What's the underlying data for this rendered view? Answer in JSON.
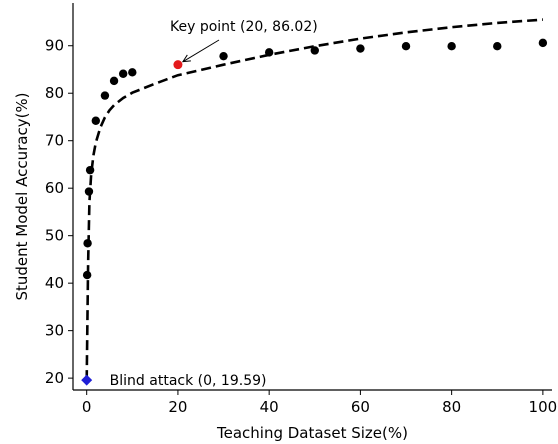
{
  "chart_data": {
    "type": "scatter",
    "xlabel": "Teaching Dataset Size(%)",
    "ylabel": "Student Model Accuracy(%)",
    "xlim": [
      -3,
      102
    ],
    "ylim": [
      17.5,
      99
    ],
    "xticks": [
      0,
      20,
      40,
      60,
      80,
      100
    ],
    "yticks": [
      20,
      30,
      40,
      50,
      60,
      70,
      80,
      90
    ],
    "grid": false,
    "points": {
      "x": [
        0.1,
        0.2,
        0.5,
        0.75,
        2,
        4,
        6,
        8,
        10,
        30,
        40,
        50,
        60,
        70,
        80,
        90,
        100
      ],
      "y": [
        41.7,
        48.4,
        59.3,
        63.8,
        74.2,
        79.5,
        82.6,
        84.1,
        84.4,
        87.8,
        88.6,
        89.0,
        89.4,
        89.9,
        89.9,
        89.9,
        90.6
      ],
      "color": "#000000"
    },
    "fit_curve": {
      "x": [
        0,
        0.3,
        0.6,
        1,
        1.5,
        2,
        3,
        4,
        5,
        6,
        8,
        10,
        15,
        20,
        25,
        30,
        40,
        50,
        60,
        70,
        80,
        90,
        100
      ],
      "y": [
        19.59,
        44,
        57,
        63,
        67,
        69.6,
        72.8,
        74.9,
        76.4,
        77.5,
        79.0,
        80.1,
        82.0,
        83.8,
        84.9,
        86.0,
        88.1,
        89.9,
        91.5,
        92.8,
        93.9,
        94.8,
        95.5
      ],
      "color": "#000000",
      "style": "dashed"
    },
    "key_point": {
      "x": 20,
      "y": 86.02,
      "color": "#e41a1c"
    },
    "blind_point": {
      "x": 0,
      "y": 19.59,
      "color": "#1f1fd6"
    },
    "annotations": {
      "key": "Key point (20, 86.02)",
      "blind": "Blind attack (0, 19.59)"
    }
  }
}
